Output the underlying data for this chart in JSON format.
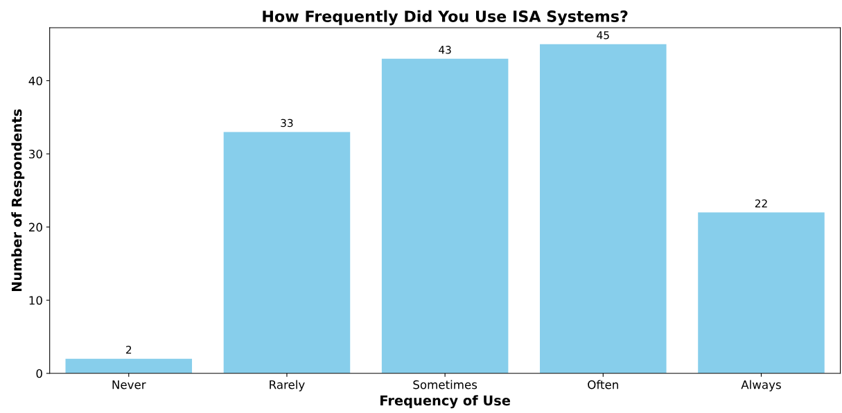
{
  "chart_data": {
    "type": "bar",
    "title": "How Frequently Did You Use ISA Systems?",
    "xlabel": "Frequency of Use",
    "ylabel": "Number of Respondents",
    "categories": [
      "Never",
      "Rarely",
      "Sometimes",
      "Often",
      "Always"
    ],
    "values": [
      2,
      33,
      43,
      45,
      22
    ],
    "color": "#87ceeb",
    "ylim": [
      0,
      47.25
    ],
    "yticks": [
      0,
      10,
      20,
      30,
      40
    ],
    "data_labels": true,
    "grid": false,
    "legend": false
  }
}
